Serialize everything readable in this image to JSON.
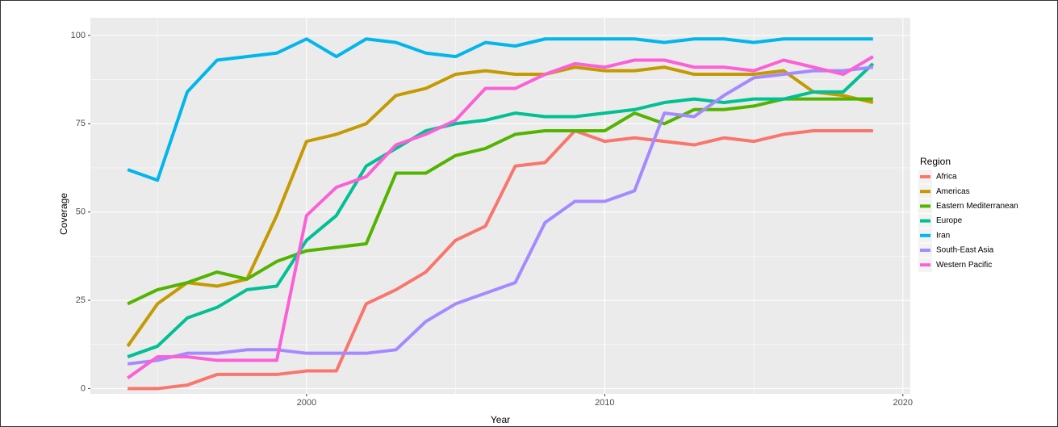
{
  "chart_data": {
    "type": "line",
    "x_label": "Year",
    "y_label": "Coverage",
    "legend_title": "Region",
    "x": [
      1994,
      1995,
      1996,
      1997,
      1998,
      1999,
      2000,
      2001,
      2002,
      2003,
      2004,
      2005,
      2006,
      2007,
      2008,
      2009,
      2010,
      2011,
      2012,
      2013,
      2014,
      2015,
      2016,
      2017,
      2018,
      2019
    ],
    "xlim": [
      1992.75,
      2020.25
    ],
    "xticks": [
      2000,
      2010,
      2020
    ],
    "ylim": [
      -1.5,
      105
    ],
    "yticks": [
      0,
      25,
      50,
      75,
      100
    ],
    "grid": true,
    "legend_position": "right",
    "series": [
      {
        "name": "Africa",
        "color": "#F8766D",
        "values": [
          0,
          0,
          1,
          4,
          4,
          4,
          5,
          5,
          24,
          28,
          33,
          42,
          46,
          63,
          64,
          73,
          70,
          71,
          70,
          69,
          71,
          70,
          72,
          73,
          73,
          73
        ]
      },
      {
        "name": "Americas",
        "color": "#C49A00",
        "values": [
          12,
          24,
          30,
          29,
          31,
          49,
          70,
          72,
          75,
          83,
          85,
          89,
          90,
          89,
          89,
          91,
          90,
          90,
          91,
          89,
          89,
          89,
          90,
          84,
          83,
          81
        ]
      },
      {
        "name": "Eastern Mediterranean",
        "color": "#53B400",
        "values": [
          24,
          28,
          30,
          33,
          31,
          36,
          39,
          40,
          41,
          61,
          61,
          66,
          68,
          72,
          73,
          73,
          73,
          78,
          75,
          79,
          79,
          80,
          82,
          82,
          82,
          82
        ]
      },
      {
        "name": "Europe",
        "color": "#00C094",
        "values": [
          9,
          12,
          20,
          23,
          28,
          29,
          42,
          49,
          63,
          68,
          73,
          75,
          76,
          78,
          77,
          77,
          78,
          79,
          81,
          82,
          81,
          82,
          82,
          84,
          84,
          92
        ]
      },
      {
        "name": "Iran",
        "color": "#00B6EB",
        "values": [
          62,
          59,
          84,
          93,
          94,
          95,
          99,
          94,
          99,
          98,
          95,
          94,
          98,
          97,
          99,
          99,
          99,
          99,
          98,
          99,
          99,
          98,
          99,
          99,
          99,
          99
        ]
      },
      {
        "name": "South-East Asia",
        "color": "#A58AFF",
        "values": [
          7,
          8,
          10,
          10,
          11,
          11,
          10,
          10,
          10,
          11,
          19,
          24,
          27,
          30,
          47,
          53,
          53,
          56,
          78,
          77,
          83,
          88,
          89,
          90,
          90,
          91
        ]
      },
      {
        "name": "Western Pacific",
        "color": "#FB61D7",
        "values": [
          3,
          9,
          9,
          8,
          8,
          8,
          49,
          57,
          60,
          69,
          72,
          76,
          85,
          85,
          89,
          92,
          91,
          93,
          93,
          91,
          91,
          90,
          93,
          91,
          89,
          94
        ]
      }
    ]
  }
}
